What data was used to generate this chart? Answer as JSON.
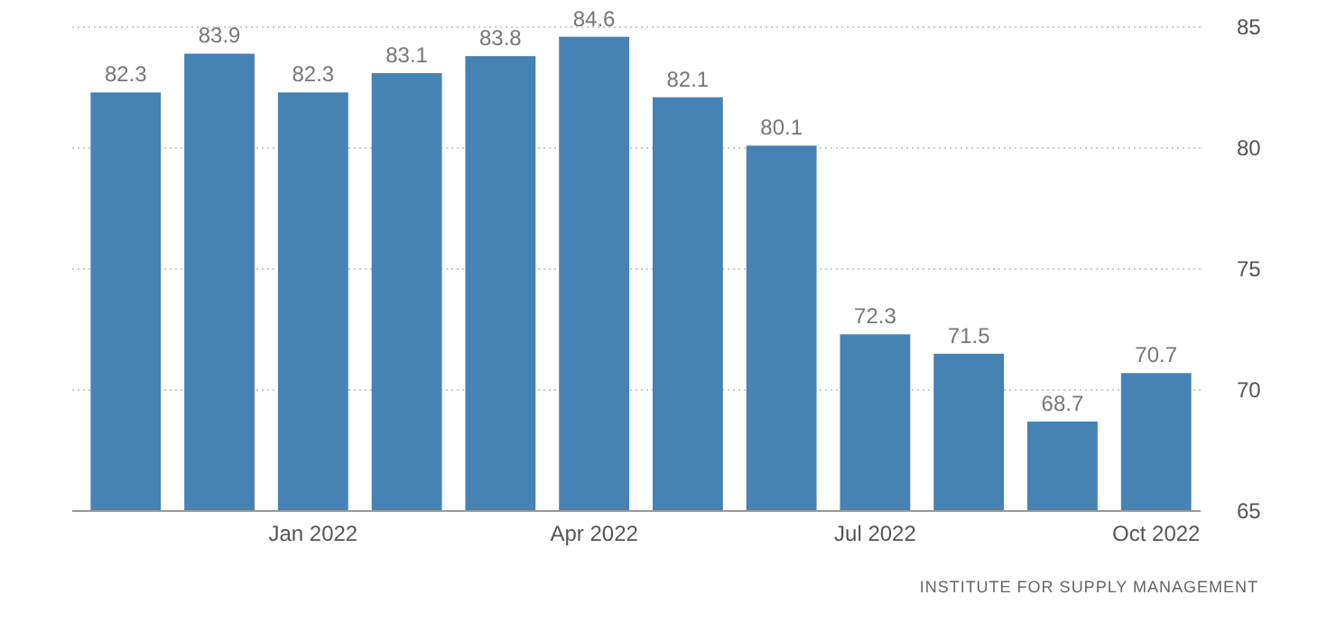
{
  "chart_data": {
    "type": "bar",
    "categories": [
      null,
      null,
      "Jan 2022",
      null,
      null,
      "Apr 2022",
      null,
      null,
      "Jul 2022",
      null,
      null,
      "Oct 2022"
    ],
    "values": [
      82.3,
      83.9,
      82.3,
      83.1,
      83.8,
      84.6,
      82.1,
      80.1,
      72.3,
      71.5,
      68.7,
      70.7
    ],
    "color": "#4682b4",
    "ylim": [
      65,
      85
    ],
    "yticks": [
      65,
      70,
      75,
      80,
      85
    ],
    "grid": "y",
    "data_labels": true,
    "annotations": [
      "INSTITUTE FOR SUPPLY MANAGEMENT"
    ]
  }
}
